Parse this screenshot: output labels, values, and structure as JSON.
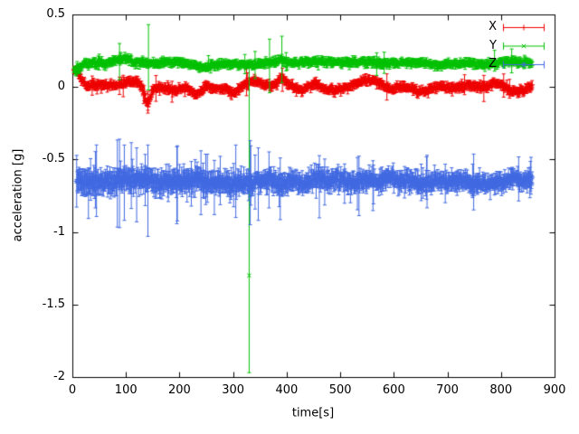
{
  "chart_data": {
    "type": "scatter",
    "style": "points-with-errorbars",
    "title": "",
    "xlabel": "time[s]",
    "ylabel": "acceleration [g]",
    "xlim": [
      0,
      900
    ],
    "ylim": [
      -2,
      0.5
    ],
    "grid": false,
    "background": "#ffffff",
    "axis_color": "#000000",
    "xticks": {
      "values": [
        0,
        100,
        200,
        300,
        400,
        500,
        600,
        700,
        800,
        900
      ],
      "labels": [
        "0",
        "100",
        "200",
        "300",
        "400",
        "500",
        "600",
        "700",
        "800",
        "900"
      ]
    },
    "yticks": {
      "values": [
        0.5,
        0,
        -0.5,
        -1,
        -1.5,
        -2
      ],
      "labels": [
        "0.5",
        "0",
        "-0.5",
        "-1",
        "-1.5",
        "-2"
      ]
    },
    "legend": {
      "position": "top-right",
      "entries": [
        {
          "label": "X",
          "color": "#ee0000",
          "marker": "plus"
        },
        {
          "label": "Y",
          "color": "#00c000",
          "marker": "cross"
        },
        {
          "label": "Z",
          "color": "#4169e1",
          "marker": "star"
        }
      ]
    },
    "series": [
      {
        "name": "X",
        "color": "#ee0000",
        "marker": "plus",
        "seed": 11,
        "baseline": 0.004,
        "noise_sd": 0.01,
        "noise_taper": 0,
        "errorbar": 0.022,
        "eb_taper": 0,
        "big_eb_p": 0.02,
        "t0": 3,
        "t1": 858,
        "dt": 1.0,
        "wander": [
          {
            "p": 300,
            "a": 0.018,
            "ph": 0.0
          },
          {
            "p": 110,
            "a": 0.012,
            "ph": 1.3
          },
          {
            "p": 57,
            "a": 0.008,
            "ph": 2.1
          }
        ],
        "bumps": [
          {
            "t": 4,
            "amp": 0.105,
            "w": 9
          },
          {
            "t": 140,
            "amp": -0.115,
            "w": 5
          },
          {
            "t": 230,
            "amp": -0.05,
            "w": 9
          },
          {
            "t": 252,
            "amp": 0.03,
            "w": 6
          },
          {
            "t": 300,
            "amp": -0.04,
            "w": 8
          },
          {
            "t": 390,
            "amp": 0.045,
            "w": 6
          },
          {
            "t": 430,
            "amp": -0.03,
            "w": 10
          },
          {
            "t": 545,
            "amp": 0.05,
            "w": 22
          },
          {
            "t": 660,
            "amp": -0.055,
            "w": 22
          },
          {
            "t": 795,
            "amp": 0.025,
            "w": 12
          }
        ],
        "outliers": [
          {
            "t": 141,
            "y": -0.11,
            "lo": -0.18,
            "hi": -0.03
          },
          {
            "t": 392,
            "y": 0.05,
            "lo": -0.03,
            "hi": 0.13
          },
          {
            "t": 768,
            "y": -0.01,
            "lo": -0.1,
            "hi": 0.08
          },
          {
            "t": 805,
            "y": 0.01,
            "lo": -0.07,
            "hi": 0.09
          }
        ]
      },
      {
        "name": "Y",
        "color": "#00c000",
        "marker": "cross",
        "seed": 22,
        "baseline": 0.165,
        "noise_sd": 0.01,
        "noise_taper": 0,
        "errorbar": 0.02,
        "eb_taper": 0,
        "big_eb_p": 0.015,
        "t0": 3,
        "t1": 858,
        "dt": 1.0,
        "wander": [
          {
            "p": 400,
            "a": 0.008,
            "ph": 0.3
          },
          {
            "p": 90,
            "a": 0.005,
            "ph": 1.1
          }
        ],
        "bumps": [
          {
            "t": 3,
            "amp": -0.06,
            "w": 11
          },
          {
            "t": 95,
            "amp": 0.018,
            "w": 10
          },
          {
            "t": 250,
            "amp": -0.02,
            "w": 14
          },
          {
            "t": 390,
            "amp": 0.03,
            "w": 6
          },
          {
            "t": 620,
            "amp": 0.008,
            "w": 30
          }
        ],
        "outliers": [
          {
            "t": 330,
            "y": -1.3,
            "lo": -1.97,
            "hi": 0.13
          },
          {
            "t": 142,
            "y": 0.17,
            "lo": -0.02,
            "hi": 0.43
          },
          {
            "t": 88,
            "y": 0.17,
            "lo": 0.05,
            "hi": 0.3
          },
          {
            "t": 391,
            "y": 0.19,
            "lo": 0.03,
            "hi": 0.35
          },
          {
            "t": 368,
            "y": 0.17,
            "lo": -0.04,
            "hi": 0.33
          }
        ]
      },
      {
        "name": "Z",
        "color": "#4169e1",
        "marker": "star",
        "seed": 33,
        "baseline": -0.652,
        "noise_sd": 0.027,
        "noise_taper": 0.35,
        "errorbar": 0.062,
        "eb_taper": 0.3,
        "big_eb_p": 0.05,
        "t0": 8,
        "t1": 858,
        "dt": 1.0,
        "wander": [
          {
            "p": 500,
            "a": 0.012,
            "ph": 0.8
          },
          {
            "p": 120,
            "a": 0.01,
            "ph": 2.0
          },
          {
            "p": 45,
            "a": 0.008,
            "ph": 0.5
          }
        ],
        "bumps": [
          {
            "t": 8,
            "amp": -0.02,
            "w": 25
          },
          {
            "t": 840,
            "amp": 0.012,
            "w": 40
          }
        ],
        "outliers": [
          {
            "t": 88,
            "y": -0.66,
            "lo": -0.97,
            "hi": -0.36
          },
          {
            "t": 141,
            "y": -0.67,
            "lo": -1.03,
            "hi": -0.4
          },
          {
            "t": 97,
            "y": -0.64,
            "lo": -0.92,
            "hi": -0.4
          },
          {
            "t": 120,
            "y": -0.65,
            "lo": -0.93,
            "hi": -0.42
          },
          {
            "t": 240,
            "y": -0.66,
            "lo": -0.88,
            "hi": -0.44
          },
          {
            "t": 305,
            "y": -0.64,
            "lo": -0.9,
            "hi": -0.4
          },
          {
            "t": 332,
            "y": -0.62,
            "lo": -0.95,
            "hi": -0.37
          },
          {
            "t": 347,
            "y": -0.66,
            "lo": -0.92,
            "hi": -0.42
          }
        ]
      }
    ]
  }
}
